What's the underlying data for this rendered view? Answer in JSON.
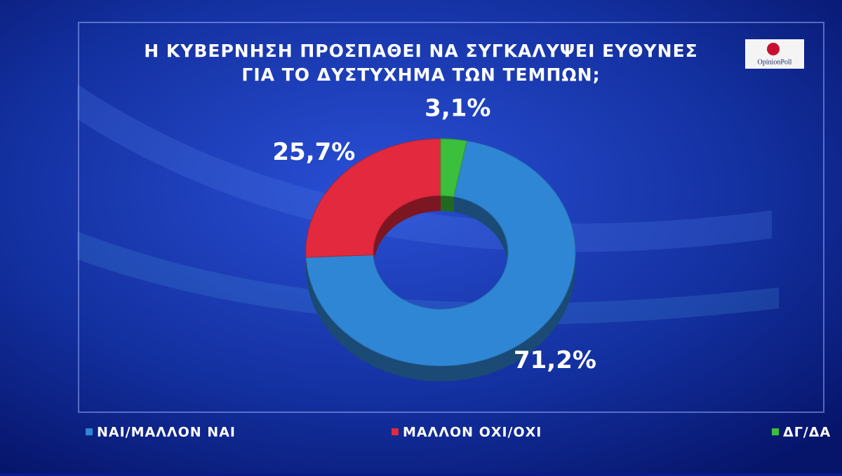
{
  "chart_data": {
    "type": "pie",
    "title": [
      "Η ΚΥΒΕΡΝΗΣΗ ΠΡΟΣΠΑΘΕΙ ΝΑ ΣΥΓΚΑΛΥΨΕΙ ΕΥΘΥΝΕΣ",
      "ΓΙΑ ΤΟ ΔΥΣΤΥΧΗΜΑ ΤΩΝ ΤΕΜΠΩΝ;"
    ],
    "logo": "OpinionPoll",
    "categories": [
      "ΝΑΙ/ΜΑΛΛΟΝ ΝΑΙ",
      "ΜΑΛΛΟΝ ΟΧΙ/ΟΧΙ",
      "ΔΓ/ΔΑ"
    ],
    "values": [
      71.2,
      25.7,
      3.1
    ],
    "value_labels": [
      "71,2%",
      "25,7%",
      "3,1%"
    ],
    "colors": [
      "#2f86d4",
      "#e2293d",
      "#3cbf3c"
    ]
  }
}
